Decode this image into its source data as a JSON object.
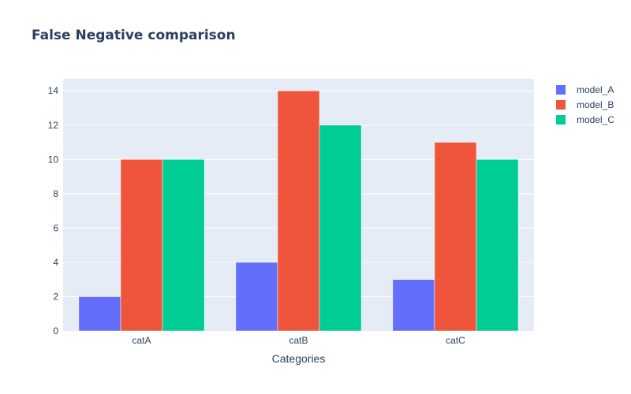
{
  "chart_data": {
    "type": "bar",
    "title": "False Negative comparison",
    "xlabel": "Categories",
    "ylabel": "",
    "categories": [
      "catA",
      "catB",
      "catC"
    ],
    "series": [
      {
        "name": "model_A",
        "values": [
          2,
          4,
          3
        ],
        "color": "#636efa"
      },
      {
        "name": "model_B",
        "values": [
          10,
          14,
          11
        ],
        "color": "#ef553b"
      },
      {
        "name": "model_C",
        "values": [
          10,
          12,
          10
        ],
        "color": "#00cc96"
      }
    ],
    "ylim": [
      0,
      14.7
    ],
    "yticks": [
      0,
      2,
      4,
      6,
      8,
      10,
      12,
      14
    ],
    "grid": true,
    "legend_position": "top-right",
    "plot_background": "#e5ecf6"
  }
}
